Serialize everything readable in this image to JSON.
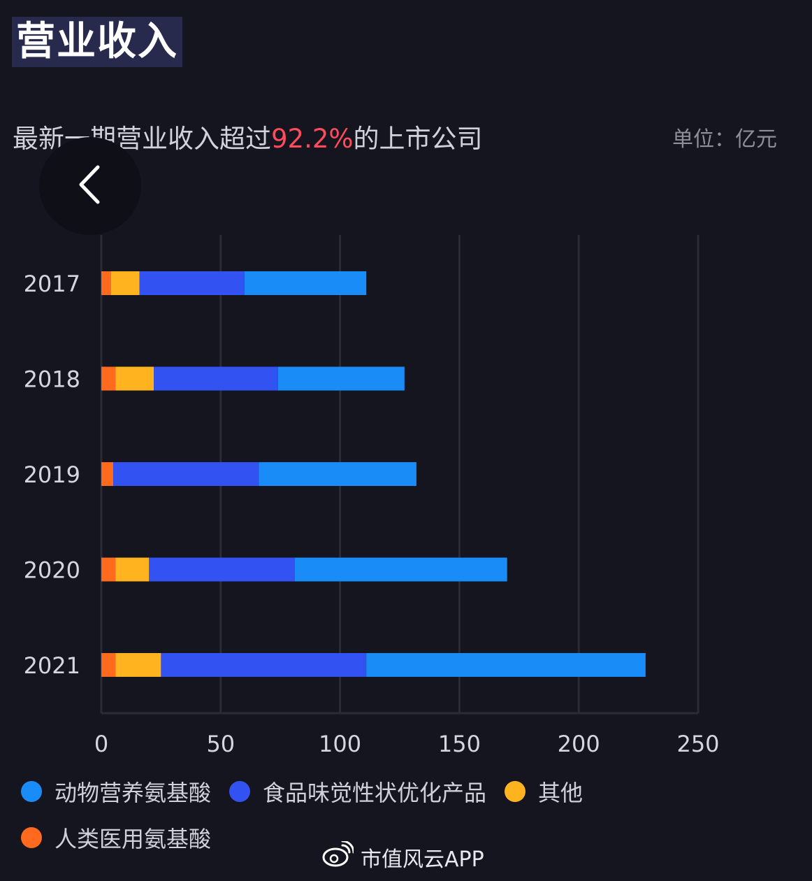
{
  "title": "营业收入",
  "subtitle": {
    "prefix": "最新一期营业收入超过",
    "highlight": "92.2%",
    "suffix": "的上市公司"
  },
  "unit": "单位：亿元",
  "watermark": "市值风云APP",
  "colors": {
    "animal_amino": "#1a8cf7",
    "food_flavor": "#3352f2",
    "other": "#ffb41f",
    "human_medical": "#ff6a1f"
  },
  "chart_data": {
    "type": "bar",
    "orientation": "horizontal",
    "stacked": true,
    "categories": [
      "2017",
      "2018",
      "2019",
      "2020",
      "2021"
    ],
    "series": [
      {
        "name": "人类医用氨基酸",
        "color": "#ff6a1f",
        "values": [
          4,
          6,
          5,
          6,
          6
        ]
      },
      {
        "name": "其他",
        "color": "#ffb41f",
        "values": [
          12,
          16,
          0,
          14,
          19
        ]
      },
      {
        "name": "食品味觉性状优化产品",
        "color": "#3352f2",
        "values": [
          44,
          52,
          61,
          61,
          86
        ]
      },
      {
        "name": "动物营养氨基酸",
        "color": "#1a8cf7",
        "values": [
          51,
          53,
          66,
          89,
          117
        ]
      }
    ],
    "xlim": [
      0,
      250
    ],
    "xticks": [
      "0",
      "50",
      "100",
      "150",
      "200",
      "250"
    ],
    "grid": true,
    "legend_position": "bottom"
  }
}
